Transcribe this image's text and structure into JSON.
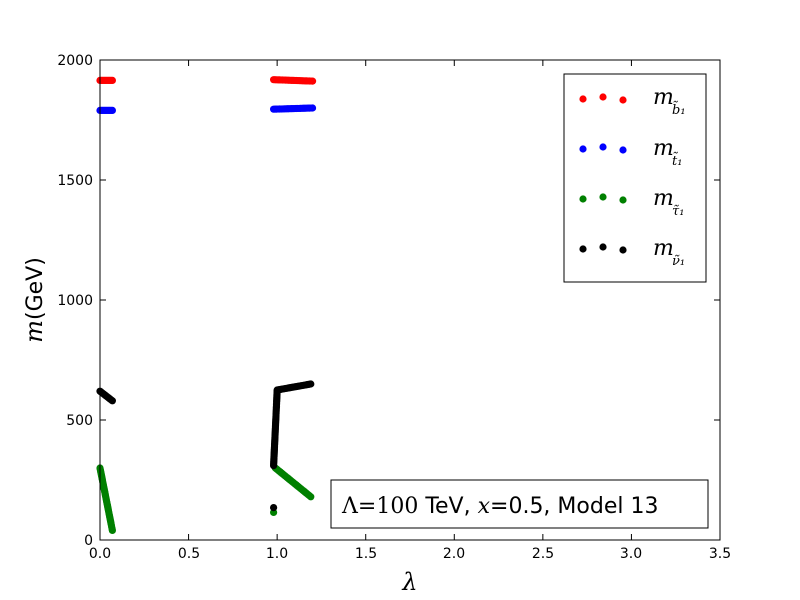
{
  "chart_data": {
    "type": "scatter",
    "xlabel": "λ",
    "ylabel_math": "m",
    "ylabel_unit": "(GeV)",
    "xlim": [
      0.0,
      3.5
    ],
    "ylim": [
      0,
      2000
    ],
    "x_ticks": [
      "0.0",
      "0.5",
      "1.0",
      "1.5",
      "2.0",
      "2.5",
      "3.0",
      "3.5"
    ],
    "y_ticks": [
      "0",
      "500",
      "1000",
      "1500",
      "2000"
    ],
    "grid": false,
    "legend_position": "top-right",
    "annotation": {
      "position": "bottom-right",
      "lambda_symbol": "Λ",
      "equals": "=",
      "lambda_value": "100",
      "unit": " TeV, ",
      "x_symbol": "x",
      "rest": "=0.5, Model 13"
    },
    "series": [
      {
        "name": "m",
        "name_subscript": "b̃₁",
        "color": "#ff0000",
        "segments": [
          {
            "x_start": 0.0,
            "x_end": 0.07,
            "y_start": 1915,
            "y_end": 1915
          },
          {
            "x_start": 0.98,
            "x_end": 1.2,
            "y_start": 1918,
            "y_end": 1912
          }
        ]
      },
      {
        "name": "m",
        "name_subscript": "t̃₁",
        "color": "#0000ff",
        "segments": [
          {
            "x_start": 0.0,
            "x_end": 0.07,
            "y_start": 1790,
            "y_end": 1790
          },
          {
            "x_start": 0.98,
            "x_end": 1.2,
            "y_start": 1795,
            "y_end": 1800
          }
        ]
      },
      {
        "name": "m",
        "name_subscript": "τ̃₁",
        "color": "#008000",
        "segments": [
          {
            "x_start": 0.0,
            "x_end": 0.07,
            "y_start": 300,
            "y_end": 40
          },
          {
            "x_start": 0.99,
            "x_end": 1.19,
            "y_start": 300,
            "y_end": 180
          }
        ],
        "isolated_points": [
          [
            0.98,
            115
          ]
        ]
      },
      {
        "name": "m",
        "name_subscript": "ν̃₁",
        "color": "#000000",
        "segments": [
          {
            "x_start": 0.0,
            "x_end": 0.07,
            "y_start": 620,
            "y_end": 580
          },
          {
            "x_start": 0.98,
            "x_end": 1.0,
            "y_start": 310,
            "y_end": 620
          },
          {
            "x_start": 1.0,
            "x_end": 1.19,
            "y_start": 625,
            "y_end": 650
          }
        ],
        "isolated_points": [
          [
            0.98,
            135
          ]
        ]
      }
    ]
  }
}
